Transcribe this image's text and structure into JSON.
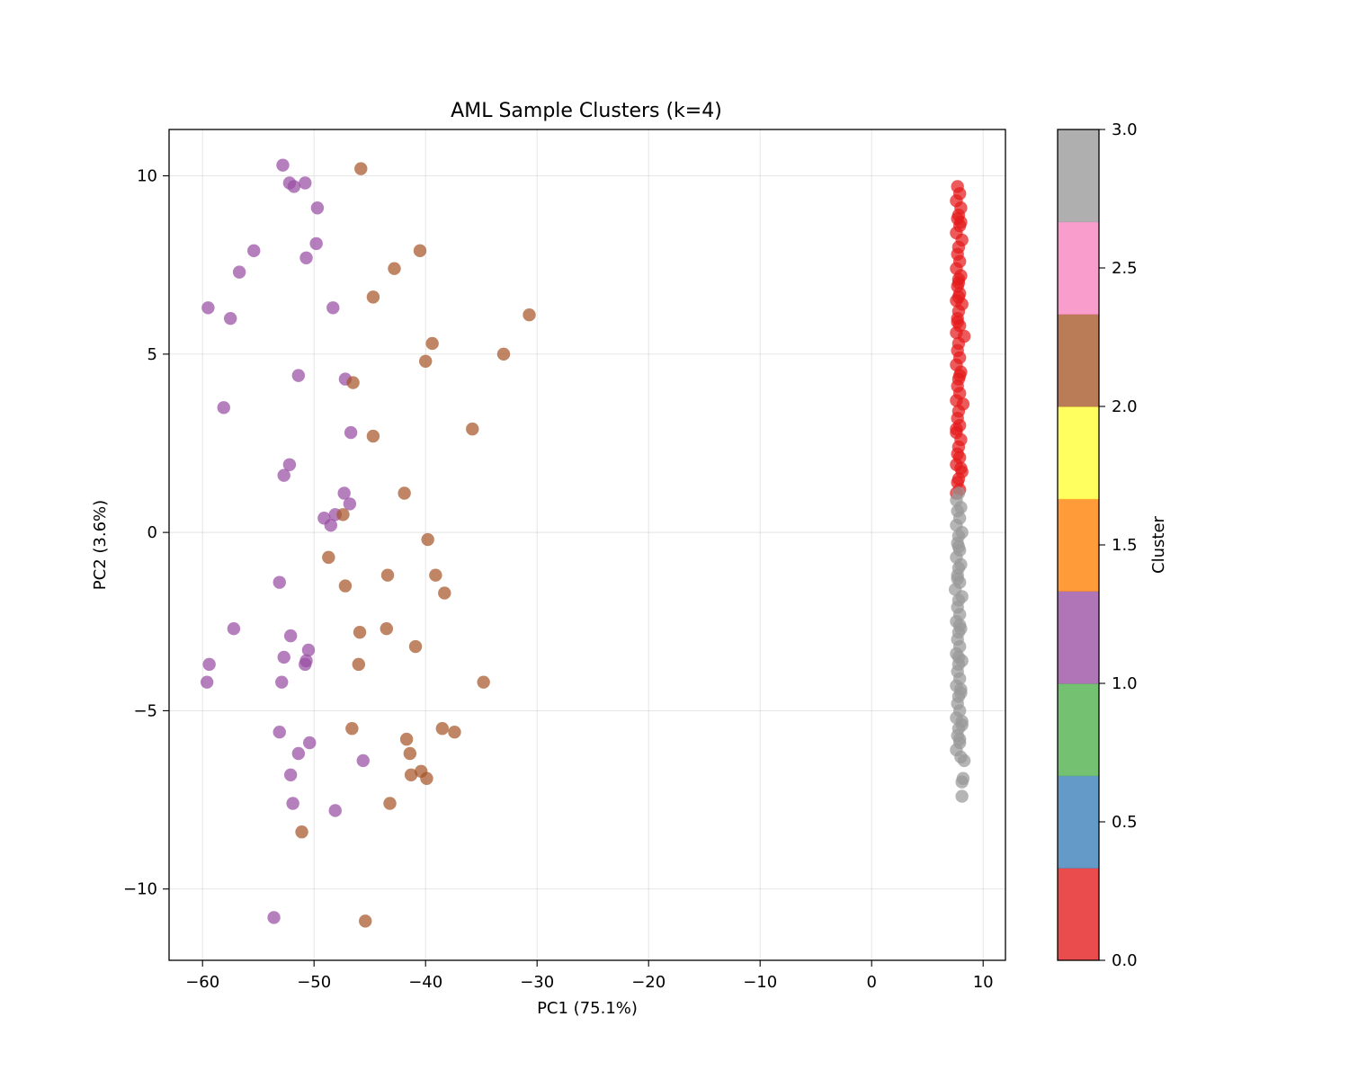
{
  "chart_data": {
    "type": "scatter",
    "title": "AML Sample Clusters (k=4)",
    "xlabel": "PC1 (75.1%)",
    "ylabel": "PC2 (3.6%)",
    "xlim": [
      -63,
      12
    ],
    "ylim": [
      -12,
      11.3
    ],
    "xticks": [
      -60,
      -50,
      -40,
      -30,
      -20,
      -10,
      0,
      10
    ],
    "yticks": [
      -10,
      -5,
      0,
      5,
      10
    ],
    "xtick_labels": [
      "−60",
      "−50",
      "−40",
      "−30",
      "−20",
      "−10",
      "0",
      "10"
    ],
    "ytick_labels": [
      "−10",
      "−5",
      "0",
      "5",
      "10"
    ],
    "grid": true,
    "colormap": "Set1",
    "colorbar": {
      "label": "Cluster",
      "range": [
        0,
        3
      ],
      "ticks": [
        0.0,
        0.5,
        1.0,
        1.5,
        2.0,
        2.5,
        3.0
      ],
      "tick_labels": [
        "0.0",
        "0.5",
        "1.0",
        "1.5",
        "2.0",
        "2.5",
        "3.0"
      ],
      "colors": [
        "#e41a1c",
        "#377eb8",
        "#4daf4a",
        "#984ea3",
        "#ff7f00",
        "#ffff33",
        "#a65628",
        "#f781bf",
        "#999999"
      ]
    },
    "series": [
      {
        "cluster": 0,
        "color": "#e41a1c",
        "x": [
          7.7,
          7.9,
          7.6,
          8.0,
          7.8,
          7.7,
          7.9,
          7.6,
          8.1,
          7.8,
          7.7,
          7.9,
          7.6,
          8.0,
          7.8,
          7.7,
          7.9,
          7.6,
          8.1,
          7.8,
          7.7,
          7.9,
          7.6,
          8.3,
          7.8,
          7.7,
          7.9,
          7.6,
          8.0,
          7.8,
          7.7,
          7.9,
          7.6,
          8.2,
          7.8,
          7.7,
          7.9,
          7.6,
          8.0,
          7.8,
          7.7,
          7.9,
          7.6,
          8.1,
          7.8,
          7.7,
          7.9,
          7.6,
          8.0,
          7.8,
          7.7,
          7.9,
          7.6,
          8.0,
          7.8
        ],
        "y": [
          9.7,
          9.5,
          9.3,
          9.1,
          8.9,
          8.8,
          8.6,
          8.4,
          8.2,
          8.0,
          7.8,
          7.6,
          7.4,
          7.2,
          7.0,
          6.9,
          6.7,
          6.5,
          6.4,
          6.2,
          6.0,
          5.8,
          5.6,
          5.5,
          5.3,
          5.1,
          4.9,
          4.7,
          4.5,
          4.3,
          4.1,
          3.9,
          3.7,
          3.6,
          3.4,
          3.2,
          3.0,
          2.8,
          2.6,
          2.4,
          2.2,
          2.1,
          1.9,
          1.7,
          1.5,
          1.4,
          1.2,
          1.1,
          8.7,
          7.1,
          5.9,
          4.4,
          2.9,
          1.8,
          6.6
        ]
      },
      {
        "cluster": 1,
        "color": "#984ea3",
        "x": [
          -52.8,
          -52.2,
          -51.8,
          -50.8,
          -49.7,
          -49.8,
          -50.7,
          -55.4,
          -56.7,
          -59.5,
          -57.5,
          -48.3,
          -51.4,
          -58.1,
          -47.2,
          -46.7,
          -52.2,
          -52.7,
          -47.3,
          -46.8,
          -48.1,
          -49.1,
          -48.5,
          -53.1,
          -57.2,
          -52.1,
          -50.5,
          -52.7,
          -50.7,
          -50.8,
          -59.4,
          -59.6,
          -52.9,
          -53.1,
          -50.4,
          -51.4,
          -52.1,
          -51.9,
          -45.6,
          -48.1,
          -53.6
        ],
        "y": [
          10.3,
          9.8,
          9.7,
          9.8,
          9.1,
          8.1,
          7.7,
          7.9,
          7.3,
          6.3,
          6.0,
          6.3,
          4.4,
          3.5,
          4.3,
          2.8,
          1.9,
          1.6,
          1.1,
          0.8,
          0.5,
          0.4,
          0.2,
          -1.4,
          -2.7,
          -2.9,
          -3.3,
          -3.5,
          -3.6,
          -3.7,
          -3.7,
          -4.2,
          -4.2,
          -5.6,
          -5.9,
          -6.2,
          -6.8,
          -7.6,
          -6.4,
          -7.8,
          -10.8
        ]
      },
      {
        "cluster": 2,
        "color": "#a65628",
        "x": [
          -45.8,
          -40.5,
          -42.8,
          -44.7,
          -30.7,
          -39.4,
          -33.0,
          -40.0,
          -46.5,
          -44.7,
          -35.8,
          -41.9,
          -47.4,
          -39.8,
          -48.7,
          -43.4,
          -39.1,
          -47.2,
          -38.3,
          -45.9,
          -43.5,
          -40.9,
          -46.0,
          -34.8,
          -46.6,
          -38.5,
          -37.4,
          -41.7,
          -41.4,
          -41.3,
          -40.4,
          -39.9,
          -43.2,
          -51.1,
          -45.4
        ],
        "y": [
          10.2,
          7.9,
          7.4,
          6.6,
          6.1,
          5.3,
          5.0,
          4.8,
          4.2,
          2.7,
          2.9,
          1.1,
          0.5,
          -0.2,
          -0.7,
          -1.2,
          -1.2,
          -1.5,
          -1.7,
          -2.8,
          -2.7,
          -3.2,
          -3.7,
          -4.2,
          -5.5,
          -5.5,
          -5.6,
          -5.8,
          -6.2,
          -6.8,
          -6.7,
          -6.9,
          -7.6,
          -8.4,
          -10.9
        ]
      },
      {
        "cluster": 3,
        "color": "#999999",
        "x": [
          7.8,
          7.6,
          8.0,
          7.7,
          7.9,
          7.6,
          8.1,
          7.8,
          7.7,
          7.9,
          7.6,
          8.0,
          7.8,
          7.7,
          7.9,
          7.5,
          8.1,
          7.8,
          7.7,
          7.9,
          7.6,
          8.0,
          7.8,
          7.7,
          7.9,
          7.6,
          8.1,
          7.8,
          7.7,
          7.9,
          7.6,
          8.0,
          7.8,
          7.7,
          7.9,
          7.6,
          8.1,
          7.8,
          7.7,
          7.9,
          7.6,
          8.0,
          7.8,
          7.7,
          7.9,
          7.8,
          8.0,
          8.1,
          7.9,
          8.3,
          8.1,
          8.2,
          8.1
        ],
        "y": [
          1.1,
          0.9,
          0.7,
          0.6,
          0.4,
          0.2,
          0.0,
          -0.1,
          -0.3,
          -0.5,
          -0.7,
          -0.9,
          -1.0,
          -1.2,
          -1.4,
          -1.6,
          -1.8,
          -1.9,
          -2.1,
          -2.3,
          -2.5,
          -2.7,
          -2.8,
          -3.0,
          -3.2,
          -3.4,
          -3.6,
          -3.7,
          -3.9,
          -4.1,
          -4.3,
          -4.5,
          -4.6,
          -4.8,
          -5.0,
          -5.2,
          -5.4,
          -5.5,
          -5.7,
          -5.9,
          -6.1,
          -6.3,
          -0.4,
          -1.3,
          -2.6,
          -3.5,
          -4.4,
          -5.3,
          -5.8,
          -6.4,
          -7.0,
          -6.9,
          -7.4
        ]
      }
    ]
  }
}
